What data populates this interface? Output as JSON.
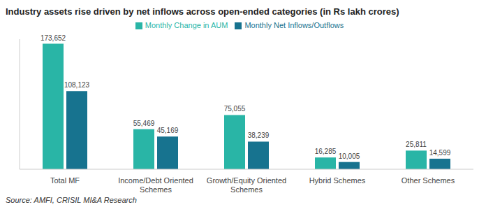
{
  "chart_data": {
    "type": "bar",
    "title": "Industry assets rise driven by net inflows across open-ended categories (in Rs lakh crores)",
    "subtitle": "Source: AMFI, CRISIL MI&A Research",
    "categories": [
      "Total MF",
      "Income/Debt Oriented Schemes",
      "Growth/Equity Oriented Schemes",
      "Hybrid Schemes",
      "Other Schemes"
    ],
    "series": [
      {
        "name": "Monthly Change in AUM",
        "color": "#29b5a6",
        "values": [
          173652,
          55469,
          75055,
          16285,
          25811
        ],
        "value_labels": [
          "173,652",
          "55,469",
          "75,055",
          "16,285",
          "25,811"
        ]
      },
      {
        "name": "Monthly Net Inflows/Outflows",
        "color": "#17738f",
        "values": [
          108123,
          45169,
          38239,
          10005,
          14599
        ],
        "value_labels": [
          "108,123",
          "45,169",
          "38,239",
          "10,005",
          "14,599"
        ]
      }
    ],
    "ylim": [
      0,
      180000
    ],
    "grid": false,
    "legend": "top",
    "data_labels": true,
    "tick_labels": "x"
  }
}
